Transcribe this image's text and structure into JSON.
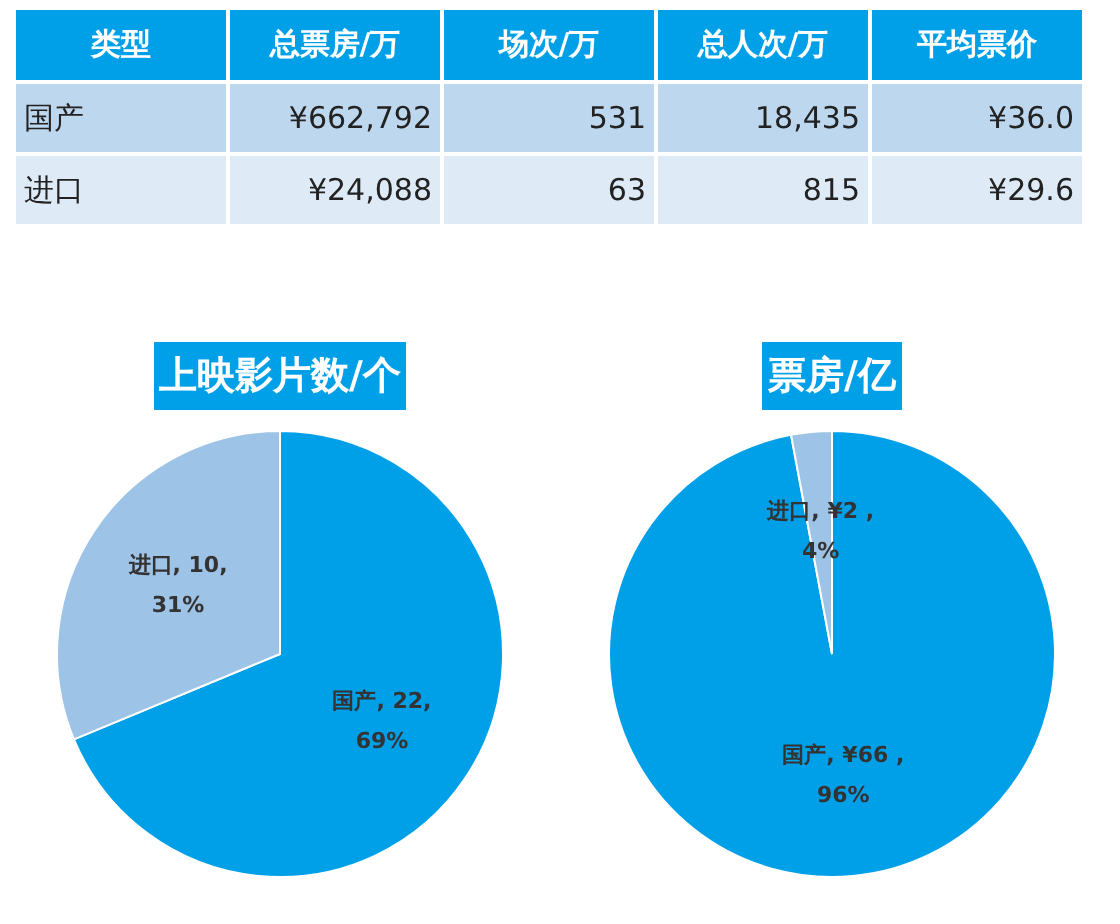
{
  "chart_data": [
    {
      "type": "other",
      "categories": [
        "类型",
        "总票房/万",
        "场次/万",
        "总人次/万",
        "平均票价"
      ],
      "y_categories": [
        "国产",
        "进口"
      ],
      "cell_labels": [
        [
          "¥662,792",
          "531",
          "18,435",
          "¥36.0"
        ],
        [
          "¥24,088",
          "63",
          "815",
          "¥29.6"
        ]
      ]
    },
    {
      "type": "pie",
      "title": "上映影片数/个",
      "categories": [
        "国产",
        "进口"
      ],
      "values": [
        22,
        10
      ],
      "colors": [
        "#00a0e9",
        "#9dc3e6"
      ],
      "value_labels": [
        ", 22, 69%",
        ", 10, 31%"
      ]
    },
    {
      "type": "pie",
      "title": "票房/亿",
      "categories": [
        "国产",
        "进口"
      ],
      "values": [
        66,
        2
      ],
      "colors": [
        "#00a0e9",
        "#9dc3e6"
      ],
      "value_labels": [
        ", ¥66 , 96%",
        ", ¥2 , 4%"
      ]
    }
  ]
}
